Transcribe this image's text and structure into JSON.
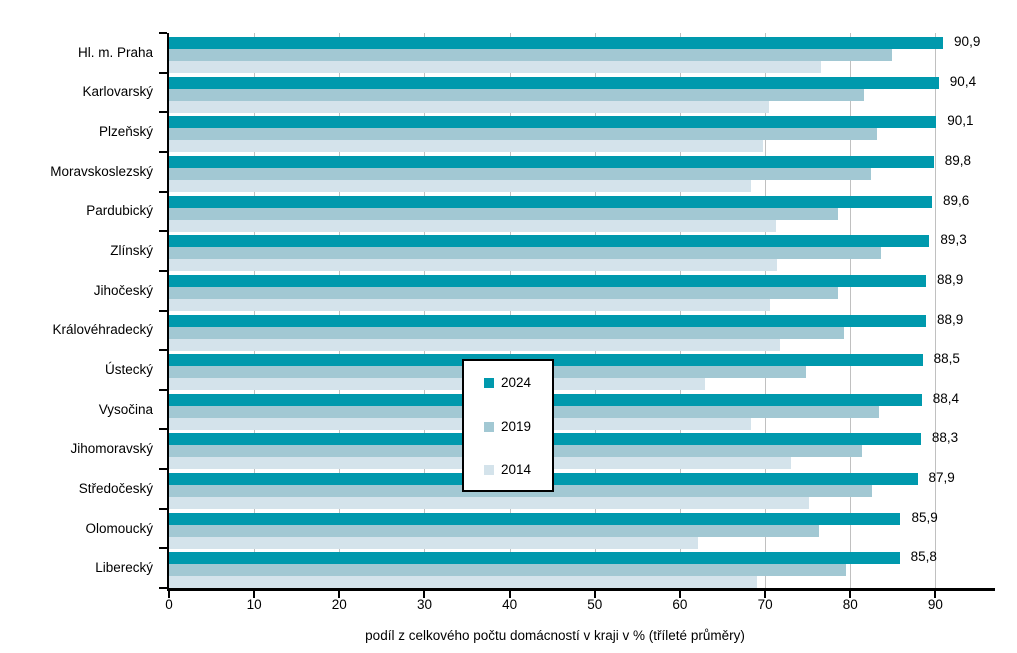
{
  "chart_data": {
    "type": "bar",
    "orientation": "horizontal",
    "title": "",
    "xlabel": "podíl z celkového počtu domácností v kraji v % (tříleté průměry)",
    "ylabel": "",
    "categories": [
      "Hl. m. Praha",
      "Karlovarský",
      "Plzeňský",
      "Moravskoslezský",
      "Pardubický",
      "Zlínský",
      "Jihočeský",
      "Královéhradecký",
      "Ústecký",
      "Vysočina",
      "Jihomoravský",
      "Středočeský",
      "Olomoucký",
      "Liberecký"
    ],
    "series": [
      {
        "name": "2024",
        "color": "#0099AD",
        "labeled": true,
        "values": [
          90.9,
          90.4,
          90.1,
          89.8,
          89.6,
          89.3,
          88.9,
          88.9,
          88.5,
          88.4,
          88.3,
          87.9,
          85.9,
          85.8
        ]
      },
      {
        "name": "2019",
        "color": "#A2C8D3",
        "labeled": false,
        "values": [
          84.9,
          81.6,
          83.2,
          82.4,
          78.6,
          83.6,
          78.6,
          79.3,
          74.8,
          83.4,
          81.4,
          82.6,
          76.3,
          79.5
        ]
      },
      {
        "name": "2014",
        "color": "#D4E3EB",
        "labeled": false,
        "values": [
          76.6,
          70.5,
          69.8,
          68.4,
          71.3,
          71.4,
          70.6,
          71.7,
          63.0,
          68.3,
          73.1,
          75.1,
          62.1,
          69.1
        ]
      }
    ],
    "data_labels": [
      "90,9",
      "90,4",
      "90,1",
      "89,8",
      "89,6",
      "89,3",
      "88,9",
      "88,9",
      "88,5",
      "88,4",
      "88,3",
      "87,9",
      "85,9",
      "85,8"
    ],
    "decimal_separator": ",",
    "x_ticks": [
      0,
      10,
      20,
      30,
      40,
      50,
      60,
      70,
      80,
      90
    ],
    "xlim": [
      0,
      97
    ],
    "grid": "vertical-major",
    "legend": {
      "position": "center-overlay",
      "entries": [
        "2024",
        "2019",
        "2014"
      ]
    },
    "colors": {
      "grid": "#C0C0C0",
      "axis": "#000000",
      "background": "#FFFFFF",
      "text": "#000000"
    }
  }
}
